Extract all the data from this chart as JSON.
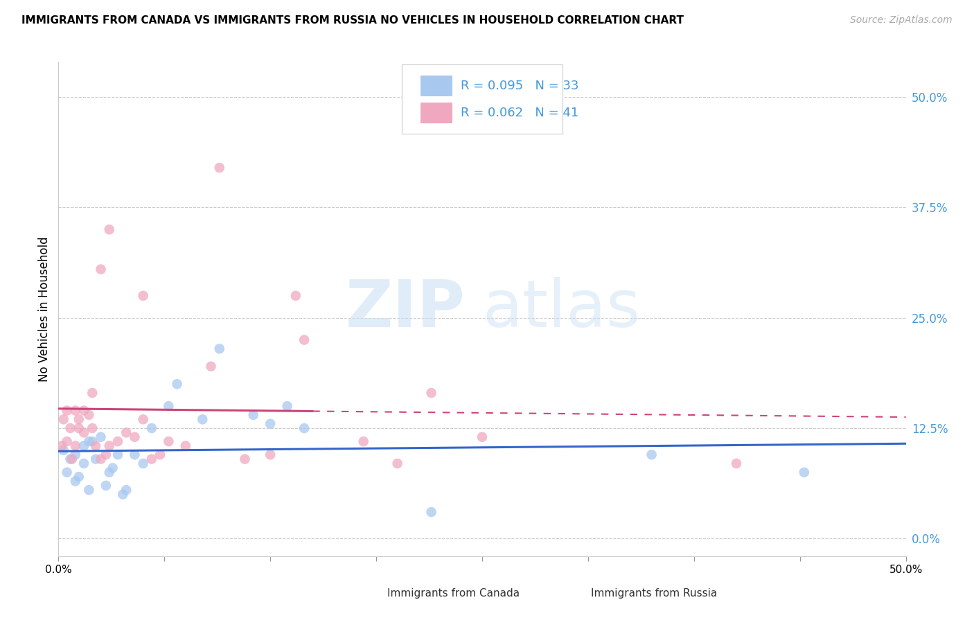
{
  "title": "IMMIGRANTS FROM CANADA VS IMMIGRANTS FROM RUSSIA NO VEHICLES IN HOUSEHOLD CORRELATION CHART",
  "source": "Source: ZipAtlas.com",
  "ylabel": "No Vehicles in Household",
  "ytick_values": [
    0.0,
    12.5,
    25.0,
    37.5,
    50.0
  ],
  "xlim": [
    0.0,
    50.0
  ],
  "ylim": [
    -2.0,
    54.0
  ],
  "legend_R_canada": "0.095",
  "legend_N_canada": "33",
  "legend_R_russia": "0.062",
  "legend_N_russia": "41",
  "color_canada": "#a8c8f0",
  "color_russia": "#f0a8c0",
  "color_canada_line": "#3366cc",
  "color_russia_line": "#cc4477",
  "color_text_blue": "#4499dd",
  "watermark_zip": "ZIP",
  "watermark_atlas": "atlas",
  "canada_x": [
    0.3,
    0.5,
    0.7,
    1.0,
    1.0,
    1.2,
    1.5,
    1.5,
    1.8,
    1.8,
    2.0,
    2.2,
    2.5,
    2.8,
    3.0,
    3.2,
    3.5,
    3.8,
    4.0,
    4.5,
    5.0,
    5.5,
    6.5,
    7.0,
    8.5,
    9.5,
    11.5,
    12.5,
    13.5,
    14.5,
    22.0,
    35.0,
    44.0
  ],
  "canada_y": [
    10.0,
    7.5,
    9.0,
    6.5,
    9.5,
    7.0,
    8.5,
    10.5,
    5.5,
    11.0,
    11.0,
    9.0,
    11.5,
    6.0,
    7.5,
    8.0,
    9.5,
    5.0,
    5.5,
    9.5,
    8.5,
    12.5,
    15.0,
    17.5,
    13.5,
    21.5,
    14.0,
    13.0,
    15.0,
    12.5,
    3.0,
    9.5,
    7.5
  ],
  "russia_x": [
    0.2,
    0.3,
    0.5,
    0.5,
    0.7,
    0.8,
    1.0,
    1.0,
    1.2,
    1.2,
    1.5,
    1.5,
    1.8,
    2.0,
    2.0,
    2.2,
    2.5,
    2.8,
    3.0,
    3.5,
    4.0,
    4.5,
    5.0,
    5.5,
    6.0,
    6.5,
    7.5,
    9.0,
    11.0,
    12.5,
    14.5,
    18.0,
    20.0,
    22.0,
    25.0,
    3.0,
    2.5,
    5.0,
    9.5,
    14.0,
    40.0
  ],
  "russia_y": [
    10.5,
    13.5,
    14.5,
    11.0,
    12.5,
    9.0,
    14.5,
    10.5,
    12.5,
    13.5,
    12.0,
    14.5,
    14.0,
    16.5,
    12.5,
    10.5,
    9.0,
    9.5,
    10.5,
    11.0,
    12.0,
    11.5,
    13.5,
    9.0,
    9.5,
    11.0,
    10.5,
    19.5,
    9.0,
    9.5,
    22.5,
    11.0,
    8.5,
    16.5,
    11.5,
    35.0,
    30.5,
    27.5,
    42.0,
    27.5,
    8.5
  ]
}
